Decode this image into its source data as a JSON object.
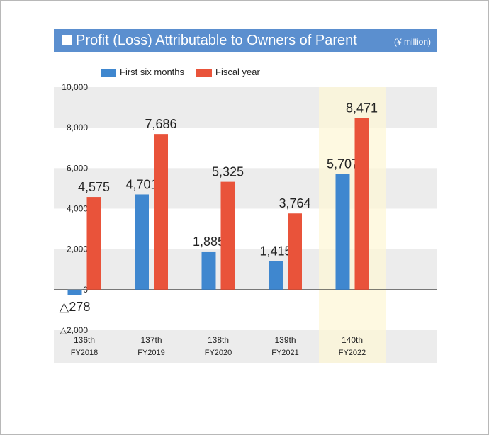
{
  "title": "Profit (Loss) Attributable to Owners of Parent",
  "unit": "(¥ million)",
  "colors": {
    "first_six_months": "#3f87cf",
    "fiscal_year": "#e9533a",
    "band": "#ececec",
    "highlight": "#fdf7d7",
    "title_bar": "#5b8fcf"
  },
  "chart_data": {
    "type": "bar",
    "title": "Profit (Loss) Attributable to Owners of Parent",
    "unit": "(¥ million)",
    "xlabel": "",
    "ylabel": "",
    "ylim": [
      -2000,
      10000
    ],
    "y_ticks": [
      {
        "value": 10000,
        "label": "10,000"
      },
      {
        "value": 8000,
        "label": "8,000"
      },
      {
        "value": 6000,
        "label": "6,000"
      },
      {
        "value": 4000,
        "label": "4,000"
      },
      {
        "value": 2000,
        "label": "2,000"
      },
      {
        "value": 0,
        "label": "0"
      },
      {
        "value": -2000,
        "label": "△2,000"
      }
    ],
    "categories": [
      {
        "term": "136th",
        "fy": "FY2018"
      },
      {
        "term": "137th",
        "fy": "FY2019"
      },
      {
        "term": "138th",
        "fy": "FY2020"
      },
      {
        "term": "139th",
        "fy": "FY2021"
      },
      {
        "term": "140th",
        "fy": "FY2022"
      }
    ],
    "highlighted_category": "FY2022",
    "series": [
      {
        "name": "First six months",
        "values": [
          -278,
          4701,
          1885,
          1415,
          5707
        ],
        "labels": [
          "△278",
          "4,701",
          "1,885",
          "1,415",
          "5,707"
        ]
      },
      {
        "name": "Fiscal year",
        "values": [
          4575,
          7686,
          5325,
          3764,
          8471
        ],
        "labels": [
          "4,575",
          "7,686",
          "5,325",
          "3,764",
          "8,471"
        ]
      }
    ],
    "legend_position": "top-left"
  }
}
